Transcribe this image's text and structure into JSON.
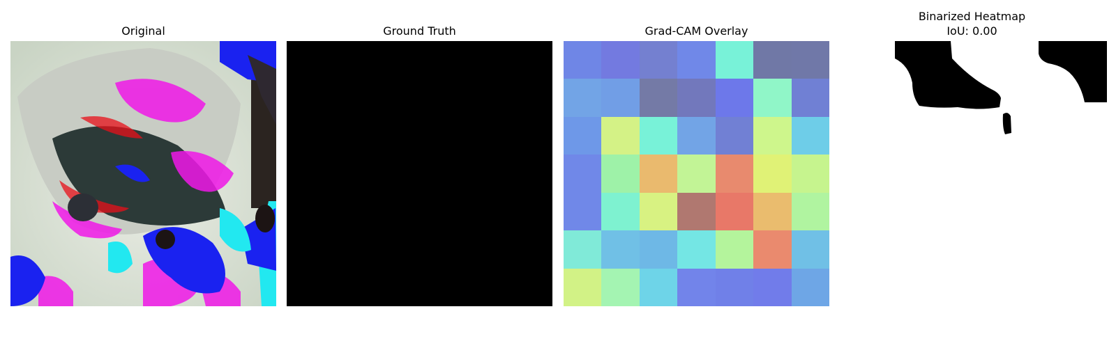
{
  "panels": {
    "original": {
      "title": "Original"
    },
    "ground_truth": {
      "title": "Ground Truth"
    },
    "gradcam": {
      "title": "Grad-CAM Overlay",
      "grid_colors": [
        [
          "#6f86e6",
          "#737ae0",
          "#7480d0",
          "#7088e8",
          "#78f2d8",
          "#7078a6",
          "#7078a8"
        ],
        [
          "#72a4e6",
          "#719ee6",
          "#747aa6",
          "#7278bc",
          "#6d78ea",
          "#90f6c8",
          "#7080d4"
        ],
        [
          "#6e98e8",
          "#d4f286",
          "#78f2d8",
          "#72a4e6",
          "#7180d4",
          "#cef68c",
          "#6ecde8"
        ],
        [
          "#7088e8",
          "#9ef2a8",
          "#eaba6e",
          "#c2f496",
          "#e88a6e",
          "#e0f276",
          "#c6f48e"
        ],
        [
          "#7088e8",
          "#7ef2d0",
          "#d8f282",
          "#b07870",
          "#e87868",
          "#eabc6e",
          "#b0f4a0"
        ],
        [
          "#80ead8",
          "#70c0e6",
          "#6eb8e6",
          "#74e6e4",
          "#b4f49c",
          "#ea8a6e",
          "#70c0e6"
        ],
        [
          "#d2f286",
          "#a4f4b2",
          "#6ed4e8",
          "#7284ea",
          "#7080e8",
          "#717cea",
          "#6ea6e6"
        ]
      ]
    },
    "binarized": {
      "title": "Binarized Heatmap",
      "subtitle": "IoU: 0.00"
    }
  }
}
